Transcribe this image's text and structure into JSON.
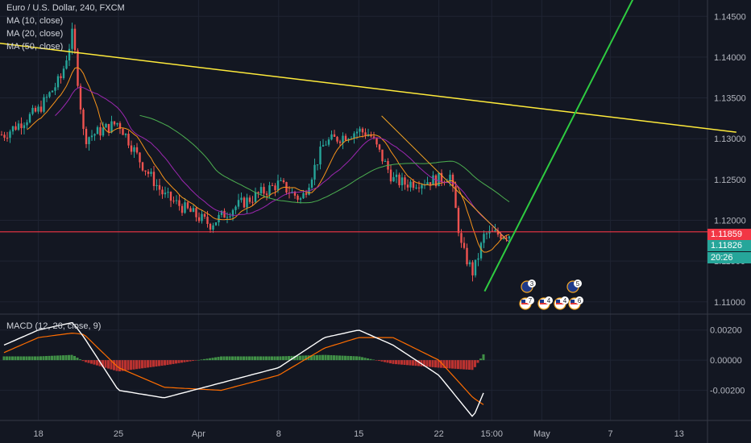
{
  "header": {
    "symbol_line": "Euro / U.S. Dollar, 240, FXCM",
    "indicators": [
      "MA (10, close)",
      "MA (20, close)",
      "MA (50, close)"
    ]
  },
  "price_axis": {
    "tick_labels": [
      "1.14500",
      "1.14000",
      "1.13500",
      "1.13000",
      "1.12500",
      "1.12000",
      "1.11500",
      "1.11000"
    ],
    "current_price_red": "1.11859",
    "current_price_green": "1.11826",
    "countdown": "20:26"
  },
  "macd": {
    "label": "MACD (12, 26, close, 9)",
    "tick_labels": [
      "0.00200",
      "0.00000",
      "-0.00200"
    ]
  },
  "time_axis": {
    "tick_labels": [
      "18",
      "25",
      "Apr",
      "8",
      "15",
      "22",
      "15:00",
      "May",
      "7",
      "13"
    ]
  },
  "events": [
    {
      "flag": "eu",
      "count": "3"
    },
    {
      "flag": "eu",
      "count": "5"
    },
    {
      "flag": "us",
      "count": "7"
    },
    {
      "flag": "us",
      "count": "4"
    },
    {
      "flag": "us",
      "count": "4"
    },
    {
      "flag": "us",
      "count": "6"
    }
  ],
  "colors": {
    "background": "#131722",
    "up_candle": "#26a69a",
    "down_candle": "#ef5350",
    "ma10": "#f7931a",
    "ma20": "#9c27b0",
    "ma50": "#4caf50",
    "trendline_yellow": "#ffeb3b",
    "trendline_green": "#2ecc40",
    "support_red": "#f23645",
    "macd_line": "#ffffff",
    "signal_line": "#ff6d00",
    "hist_up": "#4caf50",
    "hist_down": "#e53935"
  },
  "chart_data": [
    {
      "type": "candlestick",
      "title": "Euro / U.S. Dollar, 240, FXCM",
      "x": [
        "Mar 18",
        "Mar 25",
        "Apr",
        "Apr 8",
        "Apr 15",
        "Apr 22",
        "Apr 26 15:00",
        "May",
        "May 7",
        "May 13"
      ],
      "series": [
        {
          "name": "Euro / U.S. Dollar",
          "close_path_x": [
            "Mar 15",
            "Mar 18",
            "Mar 20",
            "Mar 21",
            "Mar 22",
            "Mar 25",
            "Mar 27",
            "Mar 29",
            "Apr 2",
            "Apr 4",
            "Apr 8",
            "Apr 10",
            "Apr 12",
            "Apr 15",
            "Apr 16",
            "Apr 18",
            "Apr 19",
            "Apr 22",
            "Apr 23",
            "Apr 24",
            "Apr 25",
            "Apr 26"
          ],
          "close_path_y": [
            1.1305,
            1.1335,
            1.1375,
            1.143,
            1.13,
            1.132,
            1.127,
            1.123,
            1.1195,
            1.1215,
            1.1245,
            1.1225,
            1.1295,
            1.131,
            1.1305,
            1.125,
            1.1245,
            1.125,
            1.1255,
            1.1165,
            1.1135,
            1.1183
          ]
        },
        {
          "name": "MA (10, close)"
        },
        {
          "name": "MA (20, close)"
        },
        {
          "name": "MA (50, close)"
        }
      ],
      "annotations": {
        "horizontal_line": 1.11859,
        "descending_trendline": {
          "from": [
            "Mar 14",
            1.1418
          ],
          "to": [
            "May 18",
            1.1308
          ]
        },
        "ascending_trendline": {
          "from": [
            "Apr 26",
            1.1113
          ],
          "to": [
            "May 9",
            1.1472
          ]
        }
      },
      "ylim": [
        1.1085,
        1.147
      ],
      "grid": true
    },
    {
      "type": "line",
      "title": "MACD (12, 26, close, 9)",
      "x": [
        "Mar 15",
        "Mar 18",
        "Mar 21",
        "Mar 22",
        "Mar 25",
        "Mar 29",
        "Apr 3",
        "Apr 8",
        "Apr 12",
        "Apr 15",
        "Apr 18",
        "Apr 22",
        "Apr 25",
        "Apr 26"
      ],
      "series": [
        {
          "name": "MACD",
          "values": [
            0.001,
            0.002,
            0.0025,
            0.0015,
            -0.002,
            -0.0025,
            -0.0015,
            -0.0005,
            0.0015,
            0.002,
            0.001,
            -0.001,
            -0.0038,
            -0.002
          ]
        },
        {
          "name": "Signal",
          "values": [
            0.0005,
            0.0015,
            0.0018,
            0.0017,
            -0.0005,
            -0.0018,
            -0.002,
            -0.001,
            0.0008,
            0.0015,
            0.0015,
            0.0,
            -0.0025,
            -0.003
          ]
        }
      ],
      "ylim": [
        -0.004,
        0.003
      ],
      "grid": true
    }
  ]
}
